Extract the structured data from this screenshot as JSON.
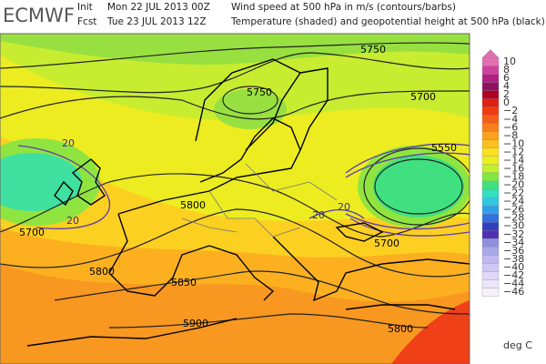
{
  "header": {
    "logo": "ECMWF",
    "init_label": "Init",
    "init_time": "Mon 22 JUL 2013 00Z",
    "init_desc": "Wind speed at 500 hPa in m/s (contours/barbs)",
    "fcst_label": "Fcst",
    "fcst_time": "Tue 23 JUL 2013 12Z",
    "fcst_desc": "Temperature (shaded) and geopotential height at 500 hPa (black)"
  },
  "map": {
    "height_labels": [
      "5750",
      "5750",
      "5700",
      "5550",
      "5800",
      "5700",
      "5700",
      "5800",
      "5850",
      "5900",
      "5800"
    ],
    "wind_labels": [
      "20",
      "20",
      "20",
      "20"
    ]
  },
  "colorbar": {
    "labels": [
      "10",
      "8",
      "6",
      "4",
      "2",
      "0",
      "−2",
      "−4",
      "−6",
      "−8",
      "−10",
      "−12",
      "−14",
      "−16",
      "−18",
      "−20",
      "−22",
      "−24",
      "−26",
      "−28",
      "−30",
      "−32",
      "−34",
      "−36",
      "−38",
      "−40",
      "−42",
      "−44",
      "−46"
    ],
    "colors": [
      "#e070b0",
      "#d040a0",
      "#b02080",
      "#901060",
      "#b00020",
      "#e02010",
      "#f03c10",
      "#f46018",
      "#f8801c",
      "#fca020",
      "#fcc020",
      "#fce020",
      "#e8f020",
      "#c0f030",
      "#80e840",
      "#40e080",
      "#30e0c0",
      "#30c8e0",
      "#30a0e8",
      "#3070e0",
      "#3040c0",
      "#5030b0",
      "#9090e0",
      "#a8a8e8",
      "#c0b8f0",
      "#d0c8f4",
      "#e0d8f8",
      "#ece6fa",
      "#f6f2fd"
    ],
    "unit": "deg C"
  }
}
